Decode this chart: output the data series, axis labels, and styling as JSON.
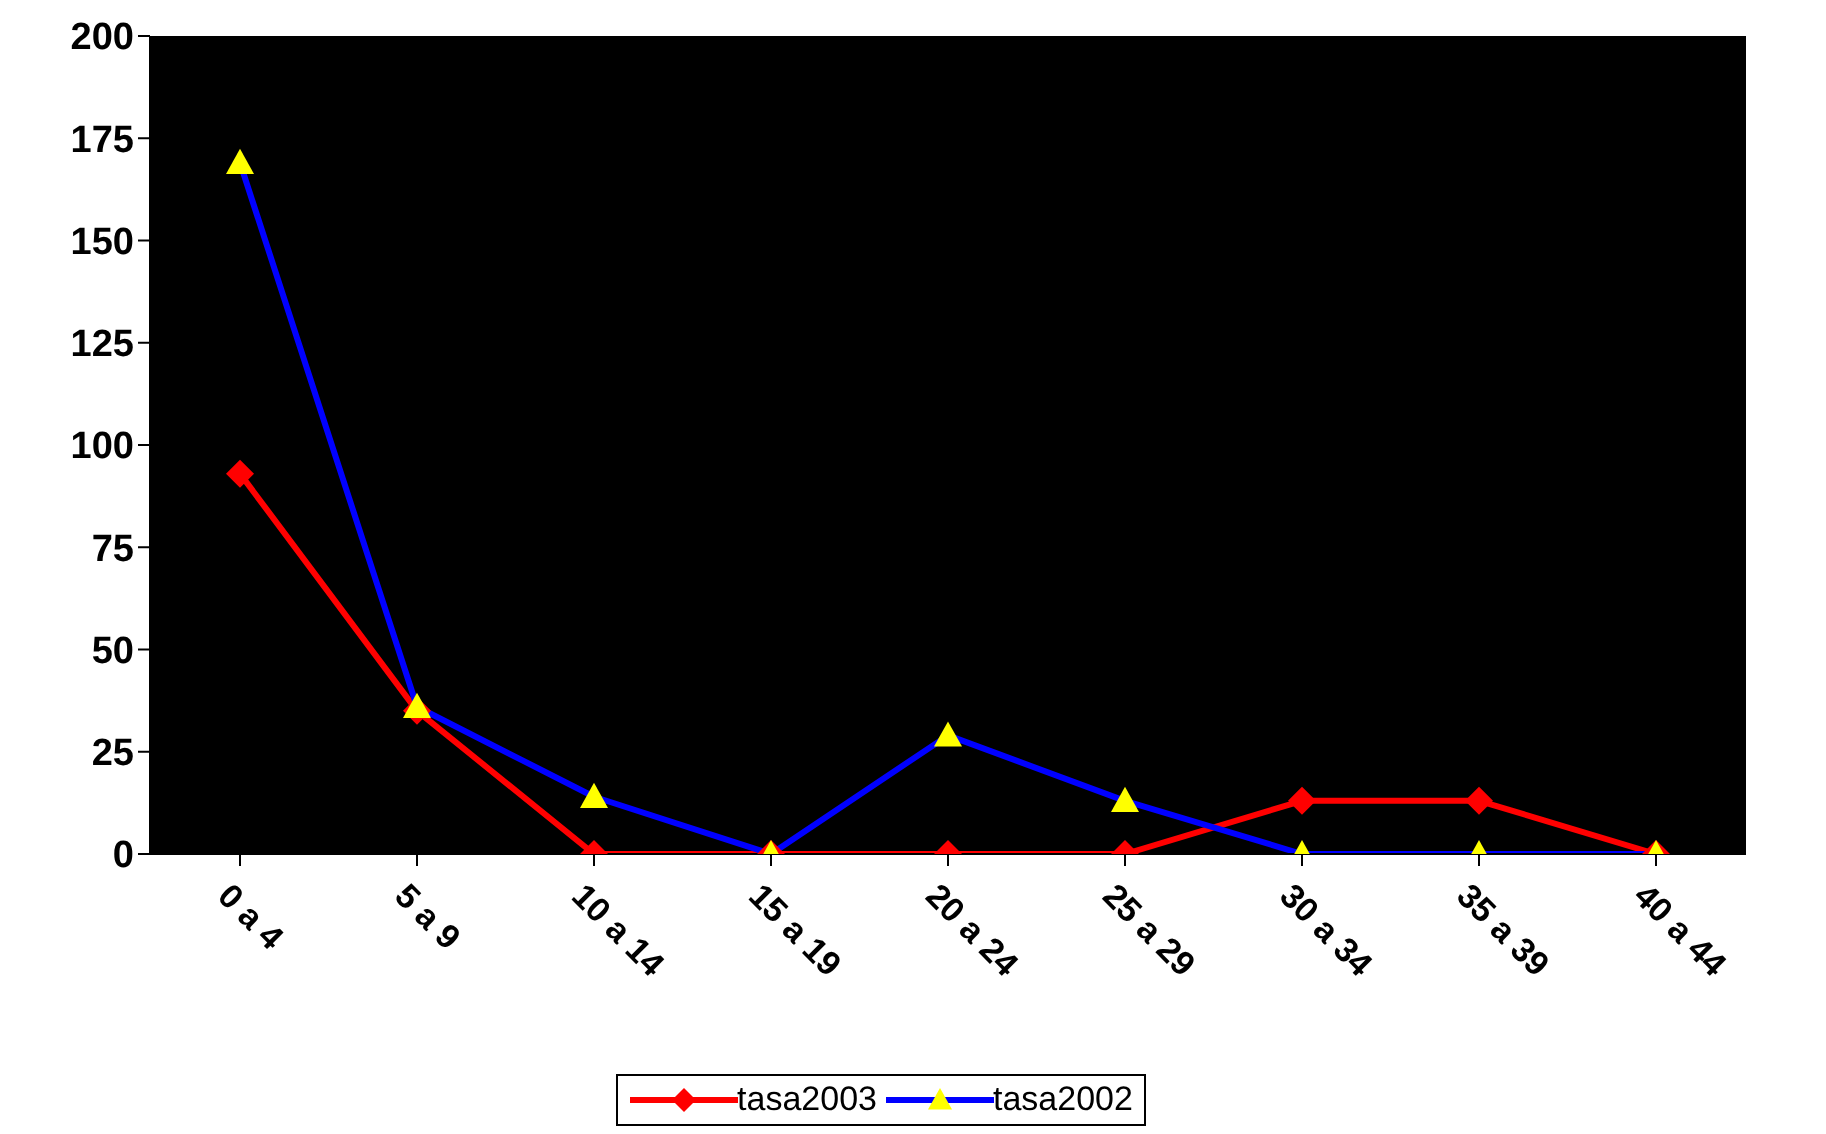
{
  "chart_data": {
    "type": "line",
    "categories": [
      "0 a 4",
      "5 a 9",
      "10 a 14",
      "15 a 19",
      "20 a 24",
      "25 a 29",
      "30 a 34",
      "35 a 39",
      "40 a 44"
    ],
    "series": [
      {
        "name": "tasa2003",
        "color": "#ff0000",
        "marker": "diamond",
        "values": [
          93,
          35,
          0,
          0,
          0,
          0,
          13,
          13,
          0
        ]
      },
      {
        "name": "tasa2002",
        "color": "#0000ff",
        "marker": "triangle",
        "colors": [
          "#ffff00",
          "#ffff00",
          "#ffff00",
          "#ffff00",
          "#ffff00",
          "#ffff00",
          "#ffff00",
          "#ffff00",
          "#ffff00"
        ],
        "values": [
          169,
          36,
          14,
          0,
          29,
          13,
          0,
          0,
          0
        ]
      }
    ],
    "ylim": [
      0,
      200
    ],
    "yticks": [
      0,
      25,
      50,
      75,
      100,
      125,
      150,
      175,
      200
    ],
    "grid": false,
    "legend": "bottom",
    "line_style": "solid"
  }
}
